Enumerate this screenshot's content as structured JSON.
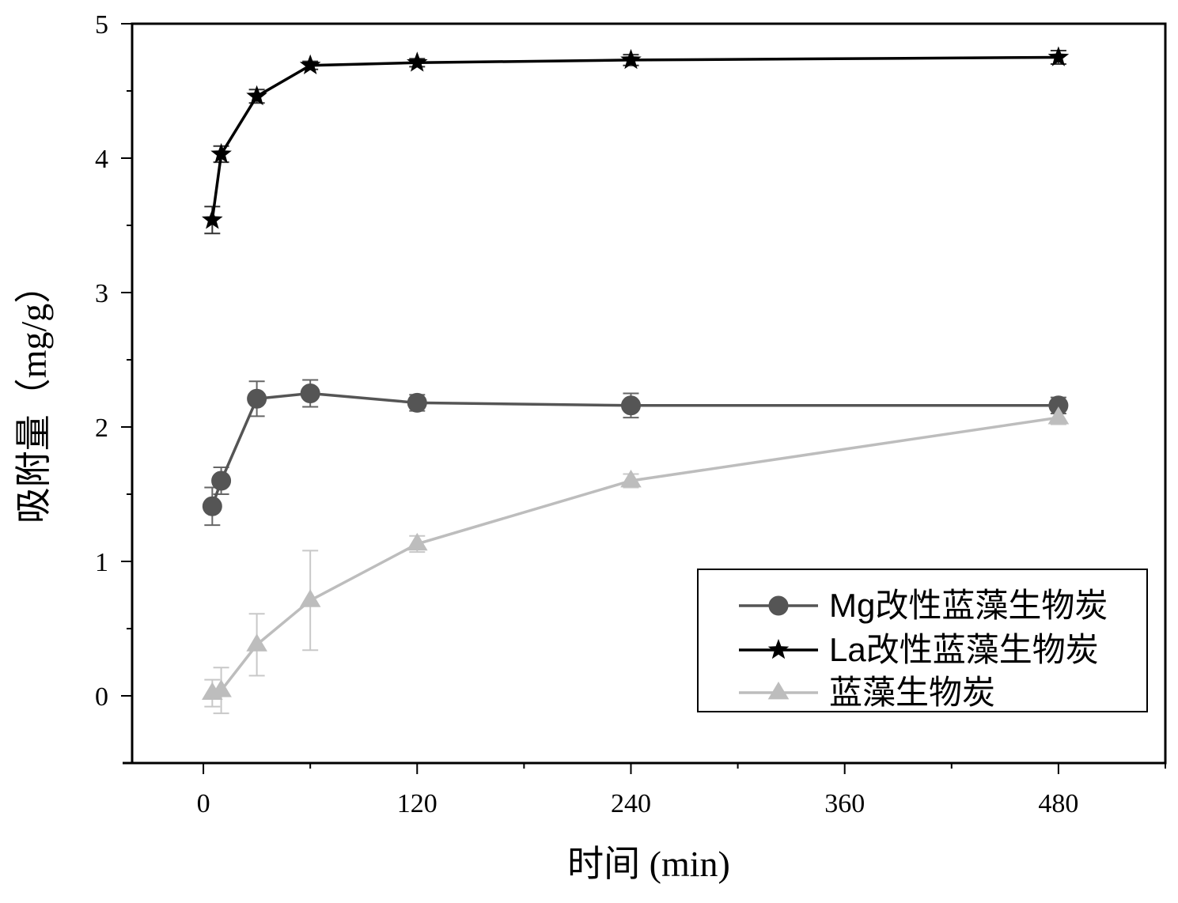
{
  "chart_data": {
    "type": "line",
    "xlabel": "时间 (min)",
    "ylabel": "吸附量（mg/g）",
    "xlim": [
      -40,
      540
    ],
    "ylim": [
      -0.5,
      5
    ],
    "x_ticks": [
      0,
      120,
      240,
      360,
      480
    ],
    "x_tick_labels": [
      "0",
      "120",
      "240",
      "360",
      "480"
    ],
    "y_ticks": [
      0,
      1,
      2,
      3,
      4,
      5
    ],
    "y_tick_labels": [
      "0",
      "1",
      "2",
      "3",
      "4",
      "5"
    ],
    "grid": false,
    "legend_position": "lower-right",
    "series": [
      {
        "name": "Mg改性蓝藻生物炭",
        "marker": "circle",
        "color": "#555555",
        "x": [
          5,
          10,
          30,
          60,
          120,
          240,
          480
        ],
        "y": [
          1.41,
          1.6,
          2.21,
          2.25,
          2.18,
          2.16,
          2.16
        ],
        "err": [
          0.14,
          0.1,
          0.13,
          0.1,
          0.06,
          0.09,
          0.06
        ]
      },
      {
        "name": "La改性蓝藻生物炭",
        "marker": "star",
        "color": "#000000",
        "x": [
          5,
          10,
          30,
          60,
          120,
          240,
          480
        ],
        "y": [
          3.54,
          4.03,
          4.46,
          4.69,
          4.71,
          4.73,
          4.75
        ],
        "err": [
          0.1,
          0.06,
          0.05,
          0.03,
          0.03,
          0.04,
          0.05
        ]
      },
      {
        "name": "蓝藻生物炭",
        "marker": "triangle",
        "color": "#bdbdbd",
        "x": [
          5,
          10,
          30,
          60,
          120,
          240,
          480
        ],
        "y": [
          0.02,
          0.04,
          0.38,
          0.71,
          1.13,
          1.6,
          2.07
        ],
        "err": [
          0.1,
          0.17,
          0.23,
          0.37,
          0.06,
          0.05,
          0.05
        ]
      }
    ]
  }
}
